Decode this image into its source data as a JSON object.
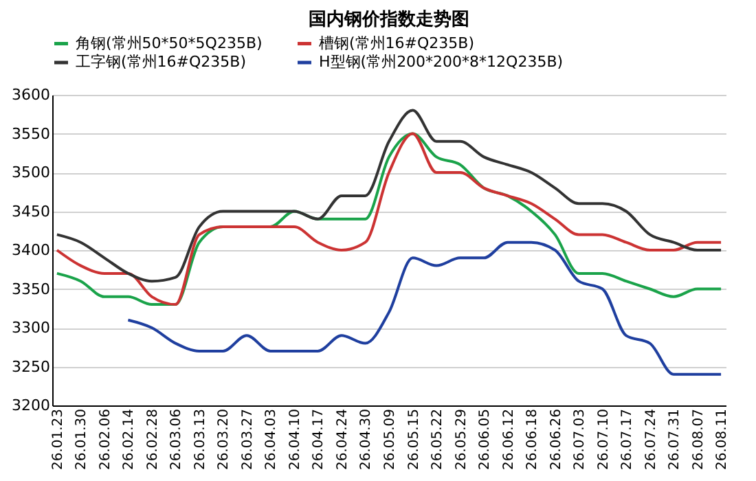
{
  "chart_data": {
    "type": "line",
    "title": "国内钢价指数走势图",
    "categories": [
      "26.01.23",
      "26.01.30",
      "26.02.06",
      "26.02.14",
      "26.02.28",
      "26.03.06",
      "26.03.13",
      "26.03.20",
      "26.03.27",
      "26.04.03",
      "26.04.10",
      "26.04.17",
      "26.04.24",
      "26.04.30",
      "26.05.09",
      "26.05.15",
      "26.05.22",
      "26.05.29",
      "26.06.05",
      "26.06.12",
      "26.06.18",
      "26.06.26",
      "26.07.03",
      "26.07.10",
      "26.07.17",
      "26.07.24",
      "26.07.31",
      "26.08.07",
      "26.08.11"
    ],
    "series": [
      {
        "name": "角钢(常州50*50*5Q235B)",
        "color": "#1aa34a",
        "values": [
          3370,
          3360,
          3340,
          3340,
          3330,
          3330,
          3410,
          3430,
          3430,
          3430,
          3450,
          3440,
          3440,
          3440,
          3520,
          3550,
          3520,
          3510,
          3480,
          3470,
          3450,
          3420,
          3370,
          3370,
          3360,
          3350,
          3340,
          3350,
          3350
        ]
      },
      {
        "name": "槽钢(常州16#Q235B)",
        "color": "#cc3333",
        "values": [
          3400,
          3380,
          3370,
          3370,
          3340,
          3330,
          3420,
          3430,
          3430,
          3430,
          3430,
          3410,
          3400,
          3410,
          3500,
          3550,
          3500,
          3500,
          3480,
          3470,
          3460,
          3440,
          3420,
          3420,
          3410,
          3400,
          3400,
          3410,
          3410
        ]
      },
      {
        "name": "工字钢(常州16#Q235B)",
        "color": "#333333",
        "values": [
          3420,
          3410,
          3390,
          3370,
          3360,
          3365,
          3430,
          3450,
          3450,
          3450,
          3450,
          3440,
          3470,
          3470,
          3540,
          3580,
          3540,
          3540,
          3520,
          3510,
          3500,
          3480,
          3460,
          3460,
          3450,
          3420,
          3410,
          3400,
          3400
        ]
      },
      {
        "name": "H型钢(常州200*200*8*12Q235B)",
        "color": "#1f3f9f",
        "values": [
          null,
          null,
          null,
          3310,
          3300,
          3280,
          3270,
          3270,
          3290,
          3270,
          3270,
          3270,
          3290,
          3280,
          3320,
          3390,
          3380,
          3390,
          3390,
          3410,
          3410,
          3400,
          3360,
          3350,
          3290,
          3280,
          3240,
          3240,
          3240
        ]
      }
    ],
    "ylim": [
      3200,
      3600
    ],
    "yticks": [
      3200,
      3250,
      3300,
      3350,
      3400,
      3450,
      3500,
      3550,
      3600
    ],
    "grid": "y",
    "legend": "top",
    "marker": "none",
    "line_style": "solid"
  }
}
